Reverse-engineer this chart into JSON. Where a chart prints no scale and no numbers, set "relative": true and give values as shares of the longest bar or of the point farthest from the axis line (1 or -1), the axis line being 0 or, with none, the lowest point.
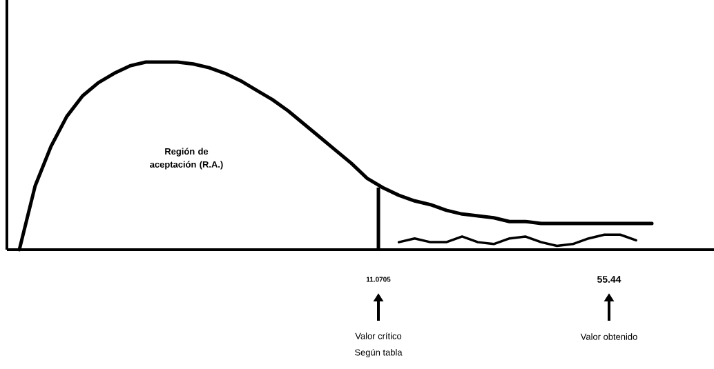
{
  "chart_data": {
    "type": "line",
    "relative": true,
    "categories": [
      null,
      null,
      null,
      null,
      null,
      null,
      null,
      null,
      null,
      null,
      null,
      null,
      null,
      null,
      null,
      null,
      null,
      null,
      null,
      null,
      null,
      null,
      null,
      null,
      null,
      null,
      null,
      null,
      null,
      null,
      null,
      null,
      null,
      null,
      null,
      null,
      null,
      null,
      null,
      null,
      null
    ],
    "series": [
      {
        "color": "#000000",
        "values": [
          0,
          0.34,
          0.55,
          0.71,
          0.82,
          0.89,
          0.94,
          0.98,
          1.0,
          1.0,
          1.0,
          0.99,
          0.97,
          0.94,
          0.9,
          0.85,
          0.8,
          0.74,
          0.67,
          0.6,
          0.53,
          0.46,
          0.38,
          0.33,
          0.29,
          0.26,
          0.24,
          0.21,
          0.19,
          0.18,
          0.17,
          0.15,
          0.15,
          0.14,
          0.14,
          0.14,
          0.14,
          0.14,
          0.14,
          0.14,
          0.14
        ]
      },
      {
        "color": "#000000",
        "values": [
          null,
          null,
          null,
          null,
          null,
          null,
          null,
          null,
          null,
          null,
          null,
          null,
          null,
          null,
          null,
          null,
          null,
          null,
          null,
          null,
          null,
          null,
          null,
          null,
          0.04,
          0.06,
          0.04,
          0.04,
          0.07,
          0.04,
          0.03,
          0.06,
          0.07,
          0.04,
          0.02,
          0.03,
          0.06,
          0.08,
          0.08,
          0.05,
          null
        ]
      }
    ],
    "annotations": [
      "Región de aceptación (R.A.)",
      "11.0705",
      "Valor crítico",
      "Según tabla",
      "55.44",
      "Valor obtenido"
    ]
  }
}
